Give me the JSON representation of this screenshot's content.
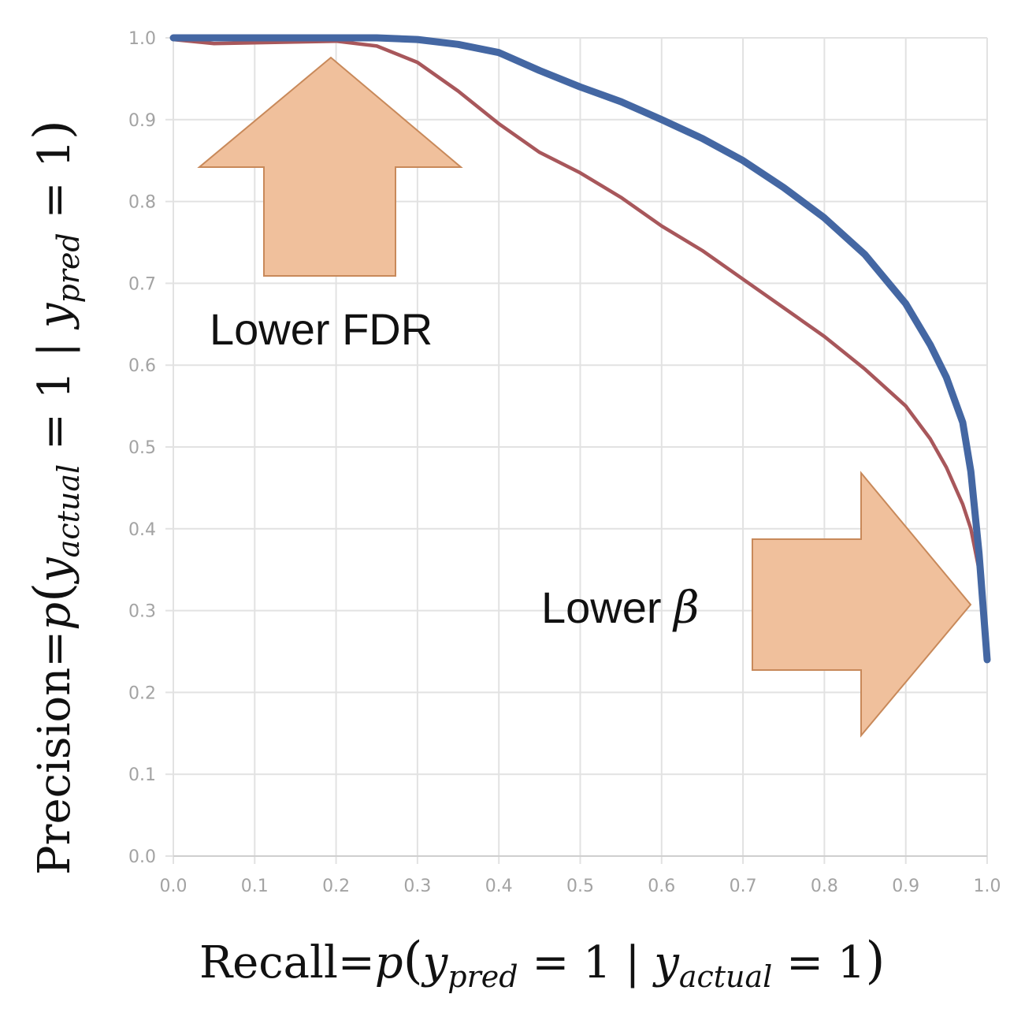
{
  "chart_data": {
    "type": "line",
    "xlabel": {
      "prefix": "Recall=",
      "p": "p",
      "open": "(",
      "y1": "y",
      "y1_sub": "pred",
      "eq1": " = 1 | ",
      "y2": "y",
      "y2_sub": "actual",
      "eq2": " = 1",
      "close": ")"
    },
    "ylabel": {
      "prefix": "Precision=",
      "p": "p",
      "open": "(",
      "y1": "y",
      "y1_sub": "actual",
      "eq1": " = 1 | ",
      "y2": "y",
      "y2_sub": "pred",
      "eq2": " = 1",
      "close": ")"
    },
    "xlim": [
      0,
      1
    ],
    "ylim": [
      0,
      1
    ],
    "x_ticks": [
      "0.0",
      "0.1",
      "0.2",
      "0.3",
      "0.4",
      "0.5",
      "0.6",
      "0.7",
      "0.8",
      "0.9",
      "1.0"
    ],
    "y_ticks": [
      "0.0",
      "0.1",
      "0.2",
      "0.3",
      "0.4",
      "0.5",
      "0.6",
      "0.7",
      "0.8",
      "0.9",
      "1.0"
    ],
    "grid": true,
    "series": [
      {
        "color": "#4467a3",
        "x": [
          0.0,
          0.05,
          0.1,
          0.15,
          0.2,
          0.25,
          0.3,
          0.35,
          0.4,
          0.45,
          0.5,
          0.55,
          0.6,
          0.65,
          0.7,
          0.75,
          0.8,
          0.85,
          0.9,
          0.93,
          0.95,
          0.97,
          0.98,
          0.99,
          1.0
        ],
        "y": [
          1.0,
          1.0,
          1.0,
          1.0,
          1.0,
          1.0,
          0.998,
          0.992,
          0.982,
          0.96,
          0.94,
          0.922,
          0.9,
          0.877,
          0.85,
          0.817,
          0.78,
          0.735,
          0.675,
          0.625,
          0.585,
          0.53,
          0.47,
          0.37,
          0.24
        ]
      },
      {
        "color": "#a8575b",
        "x": [
          0.0,
          0.05,
          0.1,
          0.15,
          0.2,
          0.25,
          0.3,
          0.35,
          0.4,
          0.45,
          0.5,
          0.55,
          0.6,
          0.65,
          0.7,
          0.75,
          0.8,
          0.85,
          0.9,
          0.93,
          0.95,
          0.97,
          0.98,
          0.99,
          1.0
        ],
        "y": [
          0.998,
          0.993,
          0.994,
          0.995,
          0.996,
          0.99,
          0.97,
          0.935,
          0.895,
          0.86,
          0.835,
          0.805,
          0.77,
          0.74,
          0.705,
          0.67,
          0.635,
          0.595,
          0.55,
          0.51,
          0.475,
          0.43,
          0.4,
          0.35,
          0.24
        ]
      }
    ],
    "annotations": [
      {
        "text": "Lower FDR",
        "arrow": "up"
      },
      {
        "text_prefix": "Lower ",
        "text_symbol": "β",
        "arrow": "right"
      }
    ]
  },
  "colors": {
    "grid": "#e2e2e2",
    "arrow_fill": "#f0c09c",
    "arrow_stroke": "#c8895a"
  }
}
